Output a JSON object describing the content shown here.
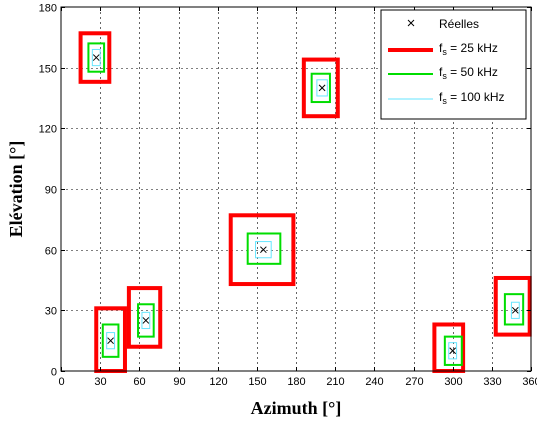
{
  "chart_data": {
    "type": "scatter",
    "title": "",
    "xlabel": "Azimuth [°]",
    "ylabel": "Elévation [°]",
    "xlim": [
      0,
      360
    ],
    "ylim": [
      0,
      180
    ],
    "xticks": [
      0,
      30,
      60,
      90,
      120,
      150,
      180,
      210,
      240,
      270,
      300,
      330,
      360
    ],
    "yticks": [
      0,
      30,
      60,
      90,
      120,
      150,
      180
    ],
    "xtick_labels": [
      "0",
      "30",
      "60",
      "90",
      "120",
      "150",
      "180",
      "210",
      "240",
      "270",
      "300",
      "330",
      "360"
    ],
    "ytick_labels": [
      "0",
      "30",
      "60",
      "90",
      "120",
      "150",
      "180"
    ],
    "grid": true,
    "legend_position": "top-right",
    "legend": {
      "reelles": "Réelles",
      "fs25_label": "f",
      "fs25_sub": "s",
      "fs25_rest": " = 25 kHz",
      "fs50_label": "f",
      "fs50_sub": "s",
      "fs50_rest": " = 50 kHz",
      "fs100_label": "f",
      "fs100_sub": "s",
      "fs100_rest": " = 100 kHz"
    },
    "colors": {
      "reelles": "#000000",
      "fs25": "#ff0000",
      "fs50": "#00dd00",
      "fs100": "#66e6ff",
      "grid": "#000000"
    },
    "series": [
      {
        "name": "Réelles",
        "marker": "x",
        "points": [
          [
            27,
            155
          ],
          [
            200,
            140
          ],
          [
            155,
            60
          ],
          [
            38,
            15
          ],
          [
            65,
            25
          ],
          [
            300,
            10
          ],
          [
            348,
            30
          ]
        ]
      },
      {
        "name": "fs = 25 kHz",
        "regions": [
          {
            "az": [
              15,
              37
            ],
            "el": [
              143,
              167
            ]
          },
          {
            "az": [
              186,
              212
            ],
            "el": [
              126,
              154
            ]
          },
          {
            "az": [
              130,
              178
            ],
            "el": [
              43,
              77
            ]
          },
          {
            "az": [
              27,
              49
            ],
            "el": [
              0,
              31
            ]
          },
          {
            "az": [
              52,
              76
            ],
            "el": [
              12,
              41
            ]
          },
          {
            "az": [
              286,
              308
            ],
            "el": [
              0,
              23
            ]
          },
          {
            "az": [
              333,
              359
            ],
            "el": [
              18,
              46
            ]
          }
        ]
      },
      {
        "name": "fs = 50 kHz",
        "regions": [
          {
            "az": [
              21,
              33
            ],
            "el": [
              148,
              162
            ]
          },
          {
            "az": [
              192,
              206
            ],
            "el": [
              133,
              147
            ]
          },
          {
            "az": [
              143,
              168
            ],
            "el": [
              53,
              68
            ]
          },
          {
            "az": [
              32,
              44
            ],
            "el": [
              7,
              23
            ]
          },
          {
            "az": [
              59,
              71
            ],
            "el": [
              17,
              33
            ]
          },
          {
            "az": [
              294,
              307
            ],
            "el": [
              3,
              17
            ]
          },
          {
            "az": [
              340,
              354
            ],
            "el": [
              23,
              38
            ]
          }
        ]
      },
      {
        "name": "fs = 100 kHz",
        "regions": [
          {
            "az": [
              24,
              30
            ],
            "el": [
              151,
              159
            ]
          },
          {
            "az": [
              196,
              204
            ],
            "el": [
              136,
              144
            ]
          },
          {
            "az": [
              149,
              161
            ],
            "el": [
              56,
              64
            ]
          },
          {
            "az": [
              35,
              41
            ],
            "el": [
              11,
              19
            ]
          },
          {
            "az": [
              62,
              68
            ],
            "el": [
              21,
              29
            ]
          },
          {
            "az": [
              297,
              303
            ],
            "el": [
              6,
              14
            ]
          },
          {
            "az": [
              345,
              351
            ],
            "el": [
              26,
              34
            ]
          }
        ]
      }
    ]
  }
}
